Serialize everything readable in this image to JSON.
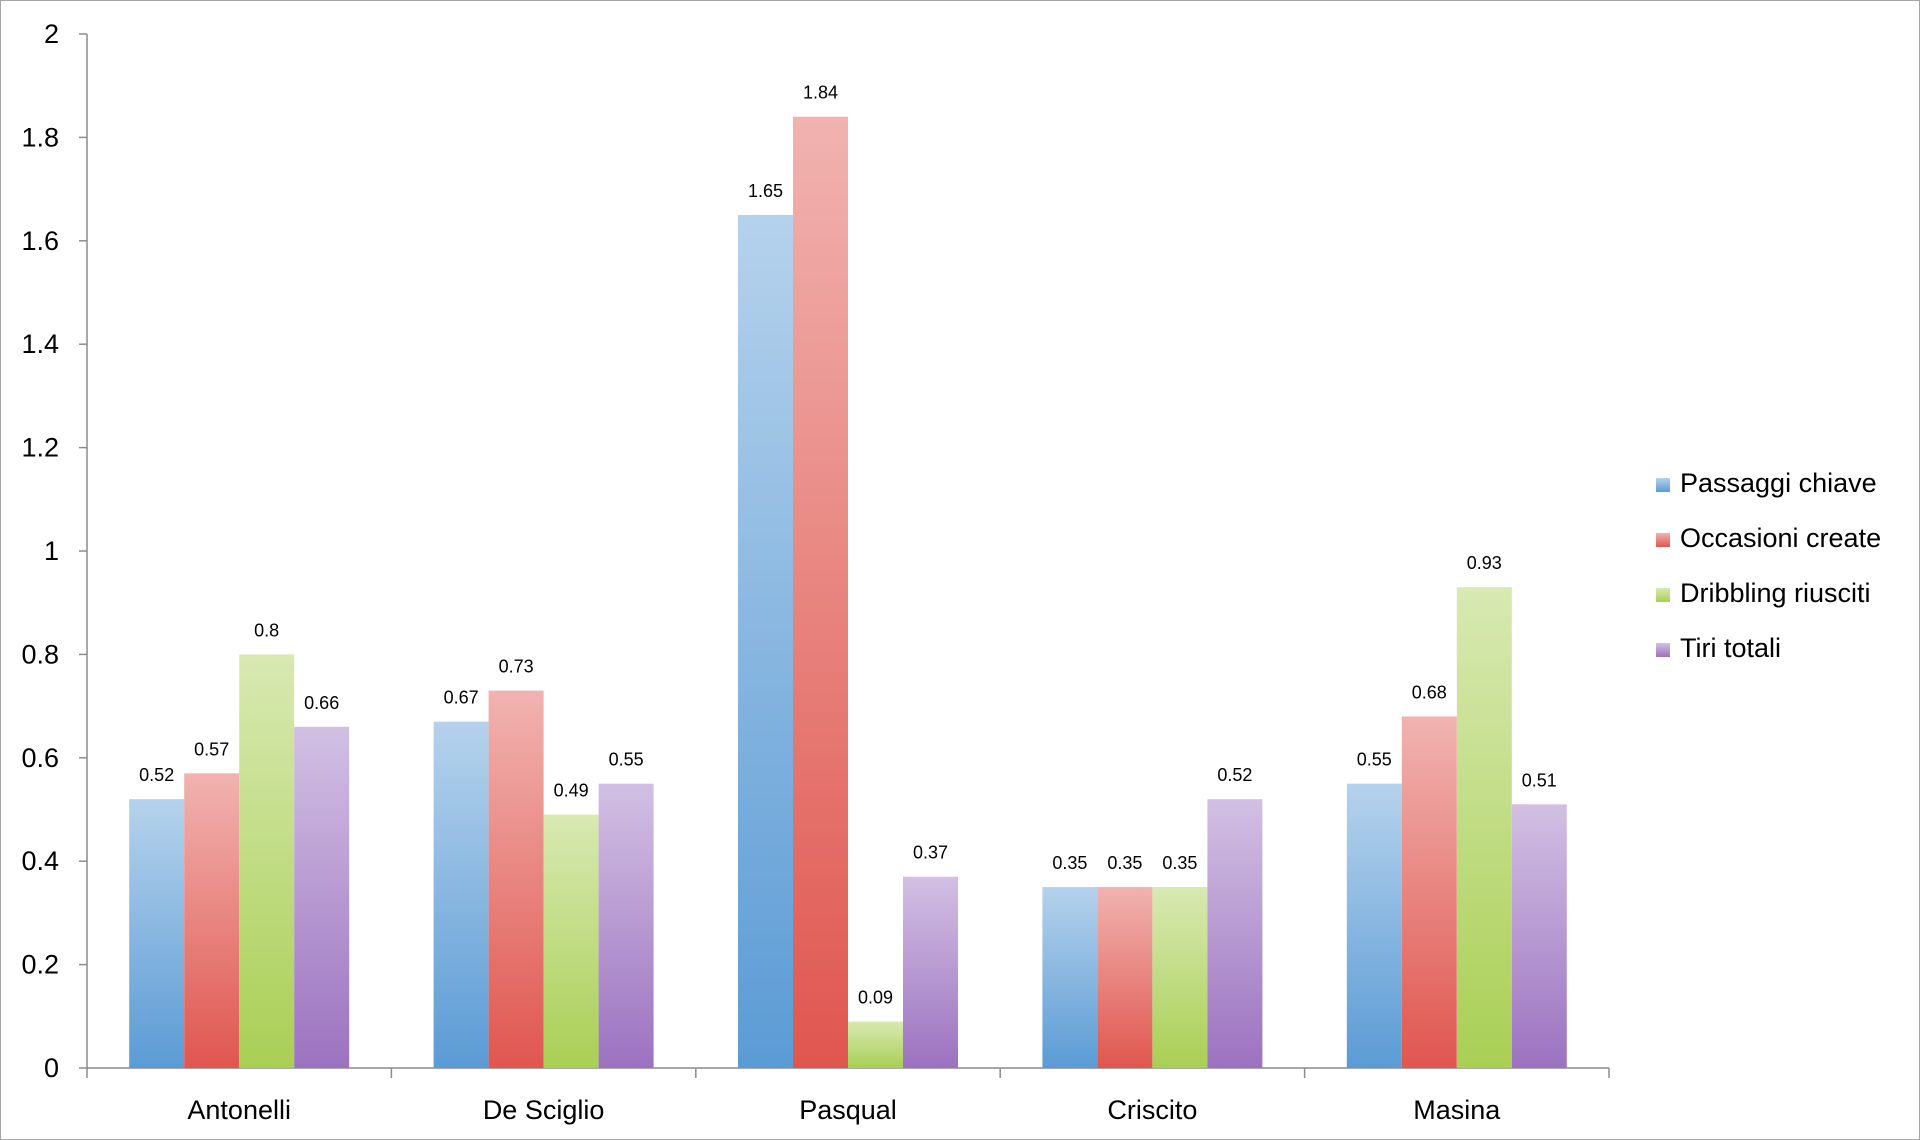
{
  "chart_data": {
    "type": "bar",
    "categories": [
      "Antonelli",
      "De Sciglio",
      "Pasqual",
      "Criscito",
      "Masina"
    ],
    "series": [
      {
        "name": "Passaggi chiave",
        "color": "#5b9bd5",
        "values": [
          0.52,
          0.67,
          1.65,
          0.35,
          0.55
        ]
      },
      {
        "name": "Occasioni create",
        "color": "#e0564f",
        "values": [
          0.57,
          0.73,
          1.84,
          0.35,
          0.68
        ]
      },
      {
        "name": "Dribbling riusciti",
        "color": "#a9cf54",
        "values": [
          0.8,
          0.49,
          0.09,
          0.35,
          0.93
        ]
      },
      {
        "name": "Tiri totali",
        "color": "#9b72c0",
        "values": [
          0.66,
          0.55,
          0.37,
          0.52,
          0.51
        ]
      }
    ],
    "yticks": [
      "0",
      "0.2",
      "0.4",
      "0.6",
      "0.8",
      "1",
      "1.2",
      "1.4",
      "1.6",
      "1.8",
      "2"
    ],
    "ylim": [
      0,
      2
    ],
    "data_labels": true,
    "grid": false,
    "legend_position": "right"
  }
}
